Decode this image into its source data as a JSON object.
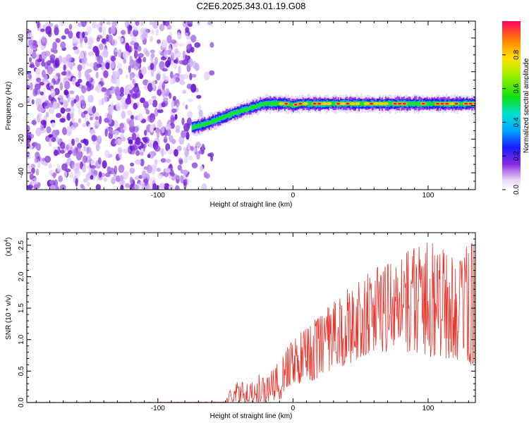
{
  "chart_data": [
    {
      "type": "heatmap",
      "title": "C2E6.2025.343.01.19.G08",
      "xlabel": "Height of straight line (km)",
      "ylabel": "Frequency (Hz)",
      "xlim": [
        -197,
        135
      ],
      "ylim": [
        -50,
        50
      ],
      "xticks": [
        -100,
        0,
        100
      ],
      "yticks": [
        -40,
        -20,
        0,
        20,
        40
      ],
      "x_tick_labels": [
        "-100",
        "0",
        "100"
      ],
      "y_tick_labels": [
        "-40",
        "-20",
        "0",
        "20",
        "40"
      ],
      "noise_region_x": [
        -197,
        -60
      ],
      "ridge": {
        "x": [
          -75,
          -65,
          -55,
          -45,
          -38,
          -30,
          -22,
          -15,
          -5,
          0,
          5,
          20,
          40,
          60,
          80,
          100,
          120,
          135
        ],
        "freq": [
          -13,
          -11,
          -8,
          -5,
          -3,
          -1,
          1,
          1,
          1,
          0,
          1,
          1,
          1,
          1,
          1,
          1,
          1,
          1
        ]
      },
      "colorbar": {
        "label": "Normalized spectral amplitude",
        "range": [
          0.0,
          1.0
        ],
        "ticks": [
          0.0,
          0.2,
          0.4,
          0.6,
          0.8
        ],
        "tick_labels": [
          "0.0",
          "0.2",
          "0.4",
          "0.6",
          "0.8"
        ]
      }
    },
    {
      "type": "line",
      "xlabel": "Height of straight line (km)",
      "ylabel": "SNR (10 * v/v)",
      "scale_label": "(x10",
      "scale_exp": "4",
      "scale_close": ")",
      "xlim": [
        -197,
        135
      ],
      "ylim": [
        0,
        2.7
      ],
      "xticks": [
        -100,
        0,
        100
      ],
      "yticks": [
        0.0,
        0.5,
        1.0,
        1.5,
        2.0,
        2.5
      ],
      "x_tick_labels": [
        "-100",
        "0",
        "100"
      ],
      "y_tick_labels": [
        "0.0",
        "0.5",
        "1.0",
        "1.5",
        "2.0",
        "2.5"
      ],
      "color": "#e8342c",
      "envelope": {
        "x": [
          -197,
          -50,
          -45,
          -40,
          -35,
          -30,
          -25,
          -20,
          -15,
          -10,
          -5,
          0,
          10,
          20,
          30,
          40,
          50,
          60,
          70,
          80,
          90,
          100,
          110,
          120,
          130,
          135
        ],
        "min": [
          0,
          0,
          0,
          0,
          0,
          0,
          0,
          0,
          0,
          0,
          0.2,
          0.3,
          0.3,
          0.4,
          0.5,
          0.6,
          0.7,
          0.8,
          0.8,
          0.8,
          0.8,
          0.7,
          0.7,
          0.7,
          0.6,
          0.6
        ],
        "max": [
          0.005,
          0.01,
          0.3,
          0.35,
          0.3,
          0.35,
          0.45,
          0.4,
          0.55,
          0.65,
          0.9,
          1.0,
          1.2,
          1.45,
          1.6,
          1.85,
          2.0,
          2.15,
          2.3,
          2.4,
          2.55,
          2.6,
          2.5,
          2.4,
          2.55,
          2.6
        ]
      }
    }
  ]
}
